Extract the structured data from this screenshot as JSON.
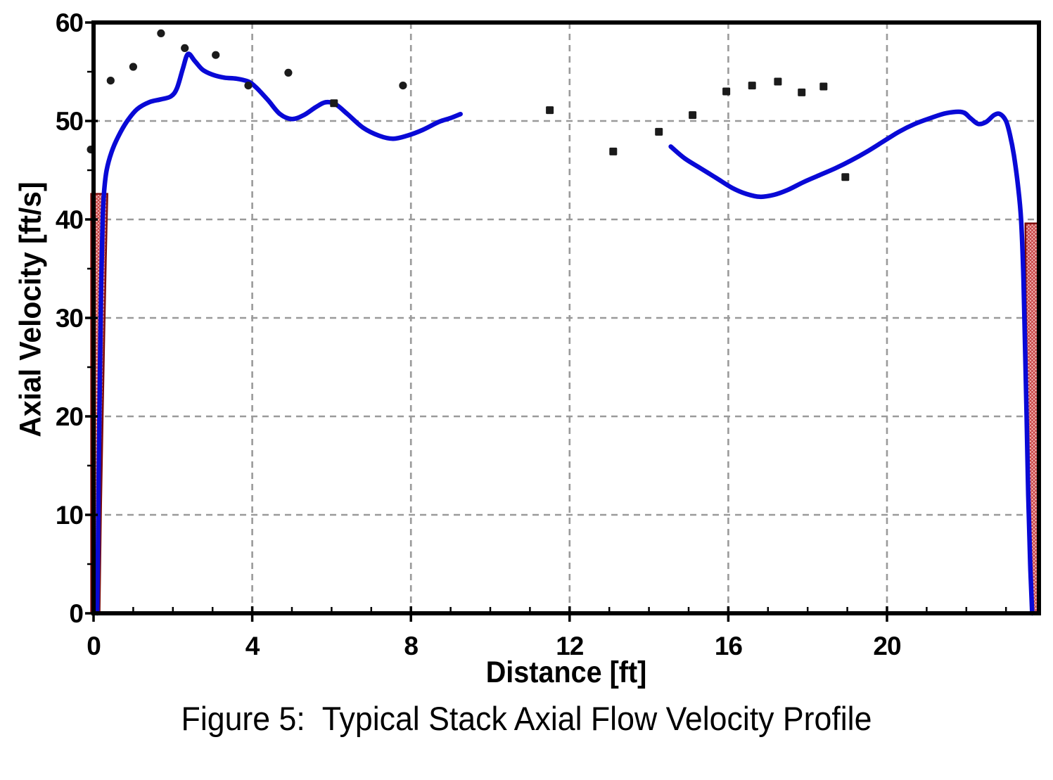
{
  "figure": {
    "caption": "Figure 5:  Typical Stack Axial Flow Velocity Profile"
  },
  "chart_data": {
    "type": "line",
    "title": "Figure 5:  Typical Stack Axial Flow Velocity Profile",
    "xlabel": "Distance [ft]",
    "ylabel": "Axial Velocity [ft/s]",
    "xlim": [
      0,
      23.83
    ],
    "ylim": [
      0,
      60
    ],
    "x_major_ticks": [
      0,
      4,
      8,
      12,
      16,
      20
    ],
    "x_minor_tick_step": 1,
    "y_major_ticks": [
      0,
      10,
      20,
      30,
      40,
      50,
      60
    ],
    "y_minor_tick_step": 5,
    "grid": "dashed on major ticks, both axes",
    "legend": "none",
    "colors": {
      "line": "#0909d6",
      "marker": "#1b1b1b",
      "grid": "#9a9a9a",
      "axis": "#000000",
      "wall_fill": "#f2b6b6",
      "wall_hatch": "#c43e3e",
      "wall_border": "#7b0a0a"
    },
    "line_segments": [
      [
        [
          0.09,
          0
        ],
        [
          0.11,
          6
        ],
        [
          0.13,
          14
        ],
        [
          0.16,
          24
        ],
        [
          0.19,
          33
        ],
        [
          0.23,
          40
        ],
        [
          0.27,
          43
        ],
        [
          0.33,
          45
        ],
        [
          0.45,
          46.8
        ],
        [
          0.62,
          48.4
        ],
        [
          0.85,
          50.0
        ],
        [
          1.1,
          51.2
        ],
        [
          1.4,
          51.9
        ],
        [
          1.7,
          52.2
        ],
        [
          1.95,
          52.5
        ],
        [
          2.1,
          53.3
        ],
        [
          2.25,
          55.3
        ],
        [
          2.38,
          56.8
        ],
        [
          2.55,
          56.1
        ],
        [
          2.75,
          55.2
        ],
        [
          3.0,
          54.7
        ],
        [
          3.3,
          54.4
        ],
        [
          3.6,
          54.3
        ],
        [
          3.9,
          54.0
        ],
        [
          4.1,
          53.4
        ],
        [
          4.4,
          52.1
        ],
        [
          4.7,
          50.7
        ],
        [
          5.0,
          50.2
        ],
        [
          5.3,
          50.6
        ],
        [
          5.6,
          51.4
        ],
        [
          5.85,
          51.9
        ],
        [
          6.1,
          51.7
        ],
        [
          6.4,
          50.7
        ],
        [
          6.8,
          49.3
        ],
        [
          7.2,
          48.5
        ],
        [
          7.55,
          48.2
        ],
        [
          7.9,
          48.5
        ],
        [
          8.3,
          49.1
        ],
        [
          8.7,
          49.9
        ],
        [
          9.0,
          50.3
        ],
        [
          9.25,
          50.7
        ]
      ],
      [
        [
          14.55,
          47.4
        ],
        [
          14.9,
          46.2
        ],
        [
          15.3,
          45.2
        ],
        [
          15.7,
          44.2
        ],
        [
          16.1,
          43.2
        ],
        [
          16.45,
          42.6
        ],
        [
          16.8,
          42.3
        ],
        [
          17.15,
          42.5
        ],
        [
          17.5,
          43.0
        ],
        [
          17.9,
          43.8
        ],
        [
          18.3,
          44.5
        ],
        [
          18.7,
          45.2
        ],
        [
          19.1,
          46.0
        ],
        [
          19.5,
          46.9
        ],
        [
          19.9,
          47.9
        ],
        [
          20.3,
          48.9
        ],
        [
          20.7,
          49.7
        ],
        [
          21.1,
          50.3
        ],
        [
          21.5,
          50.8
        ],
        [
          21.9,
          50.9
        ],
        [
          22.1,
          50.3
        ],
        [
          22.3,
          49.7
        ],
        [
          22.5,
          49.9
        ],
        [
          22.7,
          50.6
        ],
        [
          22.85,
          50.7
        ],
        [
          23.0,
          50.0
        ],
        [
          23.1,
          48.6
        ],
        [
          23.2,
          46.5
        ],
        [
          23.3,
          43.5
        ],
        [
          23.38,
          40.0
        ],
        [
          23.44,
          34.0
        ],
        [
          23.48,
          27.0
        ],
        [
          23.52,
          20.0
        ],
        [
          23.56,
          12.0
        ],
        [
          23.61,
          5.0
        ],
        [
          23.66,
          0
        ]
      ]
    ],
    "scatter_circles": [
      [
        -0.07,
        47.1
      ],
      [
        0.43,
        54.1
      ],
      [
        1.0,
        55.5
      ],
      [
        1.7,
        58.9
      ],
      [
        2.3,
        57.4
      ],
      [
        3.08,
        56.7
      ],
      [
        3.9,
        53.6
      ],
      [
        4.91,
        54.9
      ],
      [
        7.8,
        53.6
      ]
    ],
    "scatter_squares": [
      [
        6.06,
        51.8
      ],
      [
        11.5,
        51.1
      ],
      [
        13.1,
        46.9
      ],
      [
        14.25,
        48.9
      ],
      [
        15.1,
        50.6
      ],
      [
        15.95,
        53.0
      ],
      [
        16.6,
        53.6
      ],
      [
        17.25,
        54.0
      ],
      [
        17.85,
        52.9
      ],
      [
        18.4,
        53.5
      ],
      [
        18.95,
        44.3
      ]
    ],
    "wall_regions": [
      {
        "side": "left",
        "polygon": [
          [
            -0.06,
            42.6
          ],
          [
            0.35,
            42.6
          ],
          [
            0.31,
            36
          ],
          [
            0.27,
            28
          ],
          [
            0.23,
            20
          ],
          [
            0.19,
            11
          ],
          [
            0.15,
            0
          ],
          [
            -0.06,
            0
          ]
        ]
      },
      {
        "side": "right",
        "polygon": [
          [
            23.49,
            39.6
          ],
          [
            23.83,
            39.6
          ],
          [
            23.83,
            0
          ],
          [
            23.63,
            0
          ],
          [
            23.57,
            10
          ],
          [
            23.53,
            22
          ],
          [
            23.5,
            32
          ]
        ]
      }
    ]
  }
}
